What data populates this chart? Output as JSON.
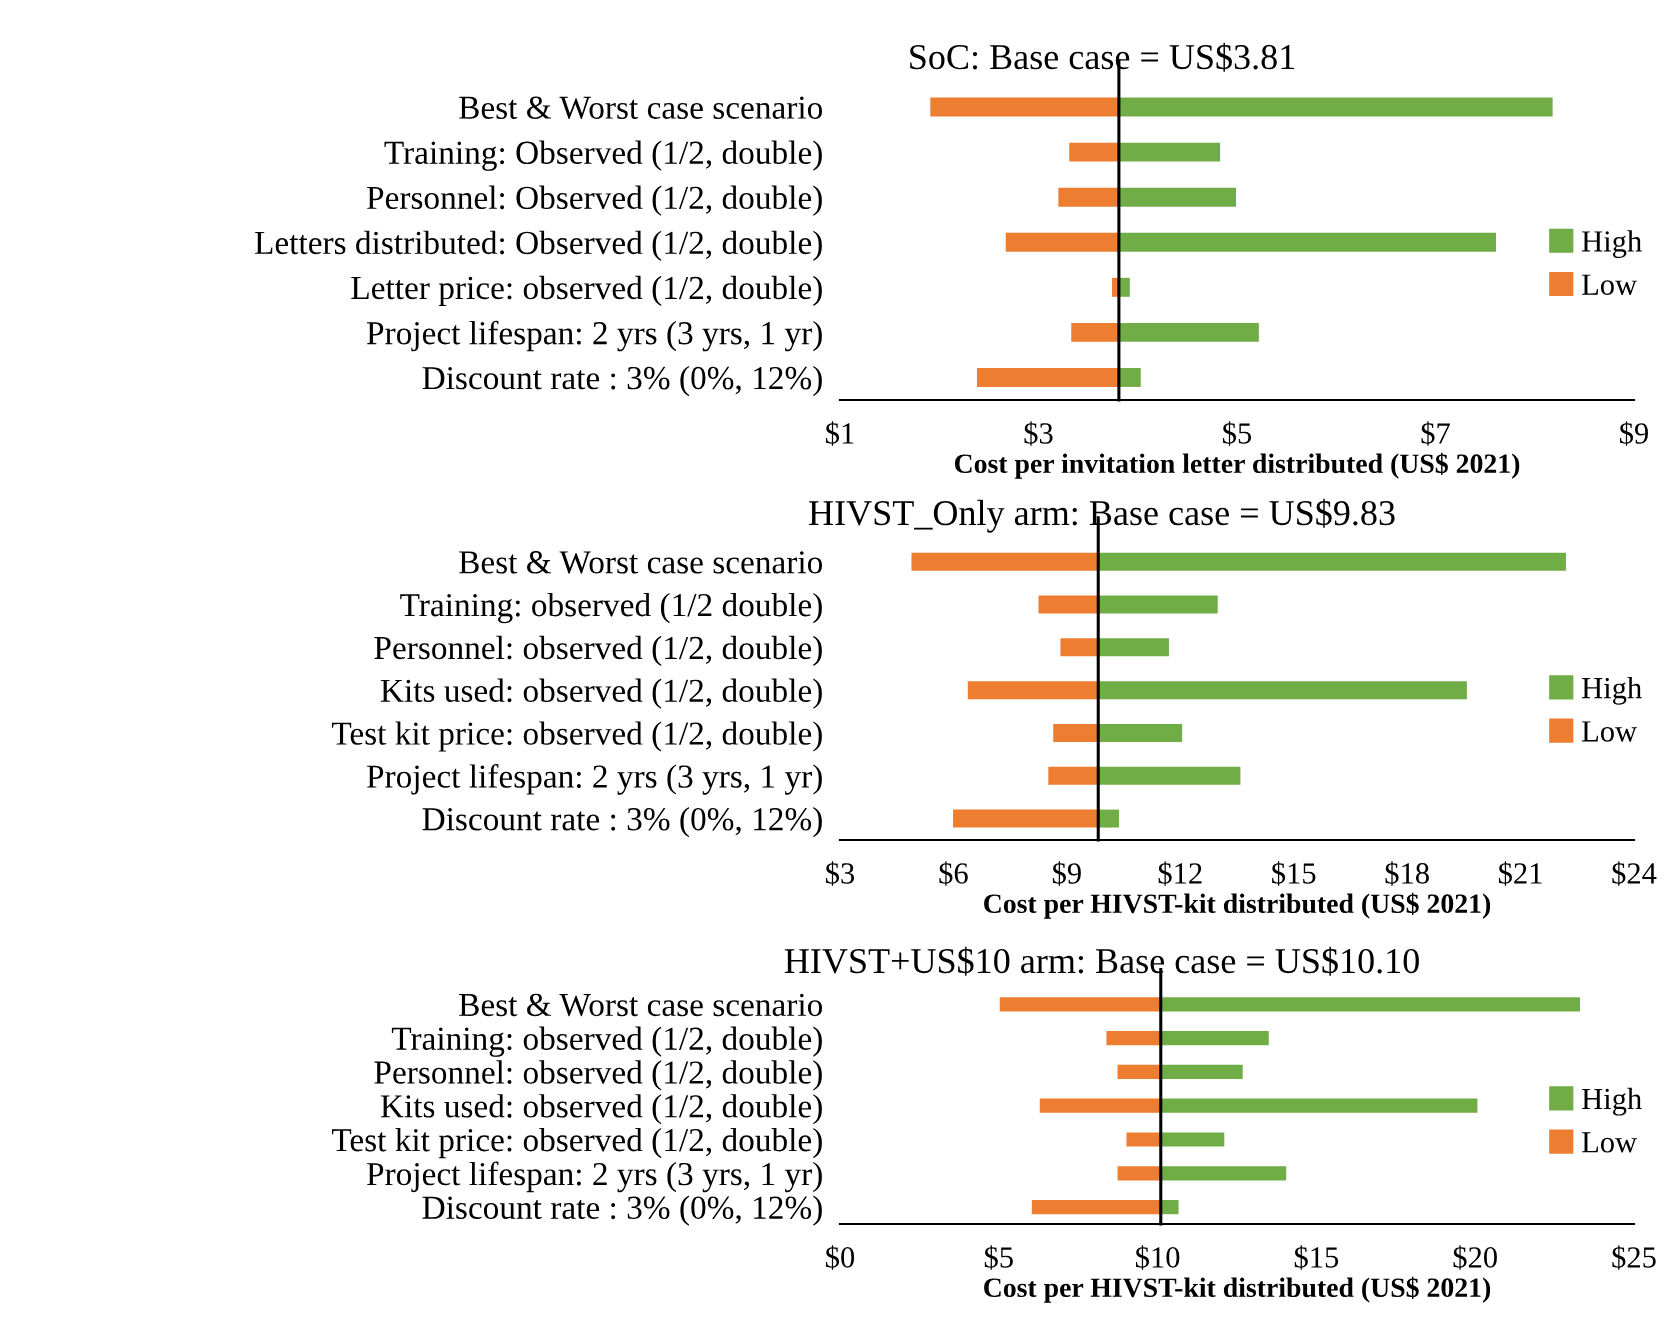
{
  "chart_data": [
    {
      "type": "bar",
      "orientation": "horizontal",
      "title": "SoC: Base case = US$3.81",
      "xlabel": "Cost per invitation letter distributed (US$ 2021)",
      "categories": [
        "Best & Worst case scenario",
        "Training: Observed (1/2, double)",
        "Personnel: Observed (1/2, double)",
        "Letters distributed: Observed (1/2, double)",
        "Letter price: observed (1/2, double)",
        "Project lifespan: 2 yrs (3 yrs, 1 yr)",
        "Discount rate : 3% (0%, 12%)"
      ],
      "series": [
        {
          "name": "High",
          "color": "#70ad47",
          "base": [
            3.81,
            3.81,
            3.81,
            3.81,
            3.81,
            3.81,
            3.81
          ],
          "values": [
            4.37,
            1.02,
            1.18,
            3.8,
            0.11,
            1.41,
            0.22
          ]
        },
        {
          "name": "Low",
          "color": "#ed7d31",
          "base": [
            3.81,
            3.81,
            3.81,
            3.81,
            3.81,
            3.81,
            3.81
          ],
          "values": [
            -1.9,
            -0.5,
            -0.61,
            -1.14,
            -0.07,
            -0.48,
            -1.43
          ]
        }
      ],
      "ref_lines": [
        {
          "axis": "x",
          "value": 3.81,
          "color": "#000000"
        }
      ],
      "xlim": [
        1,
        9
      ],
      "xticks": [
        {
          "value": 1,
          "label": "$1"
        },
        {
          "value": 3,
          "label": "$3"
        },
        {
          "value": 5,
          "label": "$5"
        },
        {
          "value": 7,
          "label": "$7"
        },
        {
          "value": 9,
          "label": "$9"
        }
      ],
      "legend": "right",
      "grid": false
    },
    {
      "type": "bar",
      "orientation": "horizontal",
      "title": "HIVST_Only arm: Base case = US$9.83",
      "xlabel": "Cost per HIVST-kit distributed (US$ 2021)",
      "categories": [
        "Best & Worst case scenario",
        "Training: observed (1/2 double)",
        "Personnel: observed (1/2, double)",
        "Kits used: observed (1/2, double)",
        "Test kit price: observed (1/2, double)",
        "Project lifespan: 2 yrs (3 yrs, 1 yr)",
        "Discount rate : 3% (0%, 12%)"
      ],
      "series": [
        {
          "name": "High",
          "color": "#70ad47",
          "base": [
            9.83,
            9.83,
            9.83,
            9.83,
            9.83,
            9.83,
            9.83
          ],
          "values": [
            12.37,
            3.16,
            1.87,
            9.75,
            2.22,
            3.76,
            0.55
          ]
        },
        {
          "name": "Low",
          "color": "#ed7d31",
          "base": [
            9.83,
            9.83,
            9.83,
            9.83,
            9.83,
            9.83,
            9.83
          ],
          "values": [
            -4.94,
            -1.58,
            -1.0,
            -3.45,
            -1.19,
            -1.32,
            -3.84
          ]
        }
      ],
      "ref_lines": [
        {
          "axis": "x",
          "value": 9.83,
          "color": "#000000"
        }
      ],
      "xlim": [
        3,
        24
      ],
      "xticks": [
        {
          "value": 3,
          "label": "$3"
        },
        {
          "value": 6,
          "label": "$6"
        },
        {
          "value": 9,
          "label": "$9"
        },
        {
          "value": 12,
          "label": "$12"
        },
        {
          "value": 15,
          "label": "$15"
        },
        {
          "value": 18,
          "label": "$18"
        },
        {
          "value": 21,
          "label": "$21"
        },
        {
          "value": 24,
          "label": "$24"
        }
      ],
      "legend": "right",
      "grid": false
    },
    {
      "type": "bar",
      "orientation": "horizontal",
      "title": "HIVST+US$10 arm: Base case = US$10.10",
      "xlabel": "Cost per HIVST-kit distributed (US$ 2021)",
      "categories": [
        "Best & Worst case scenario",
        "Training: observed (1/2, double)",
        "Personnel: observed (1/2, double)",
        "Kits used: observed (1/2, double)",
        "Test kit price: observed (1/2, double)",
        "Project lifespan: 2 yrs (3 yrs, 1 yr)",
        "Discount rate : 3% (0%, 12%)"
      ],
      "series": [
        {
          "name": "High",
          "color": "#70ad47",
          "base": [
            10.1,
            10.1,
            10.1,
            10.1,
            10.1,
            10.1,
            10.1
          ],
          "values": [
            13.2,
            3.4,
            2.58,
            9.97,
            2.0,
            3.95,
            0.56
          ]
        },
        {
          "name": "Low",
          "color": "#ed7d31",
          "base": [
            10.1,
            10.1,
            10.1,
            10.1,
            10.1,
            10.1,
            10.1
          ],
          "values": [
            -5.07,
            -1.71,
            -1.36,
            -3.81,
            -1.08,
            -1.36,
            -4.06
          ]
        }
      ],
      "ref_lines": [
        {
          "axis": "x",
          "value": 10.1,
          "color": "#000000"
        }
      ],
      "xlim": [
        0,
        25
      ],
      "xticks": [
        {
          "value": 0,
          "label": "$0"
        },
        {
          "value": 5,
          "label": "$5"
        },
        {
          "value": 10,
          "label": "$10"
        },
        {
          "value": 15,
          "label": "$15"
        },
        {
          "value": 20,
          "label": "$20"
        },
        {
          "value": 25,
          "label": "$25"
        }
      ],
      "legend": "right",
      "grid": false
    }
  ]
}
